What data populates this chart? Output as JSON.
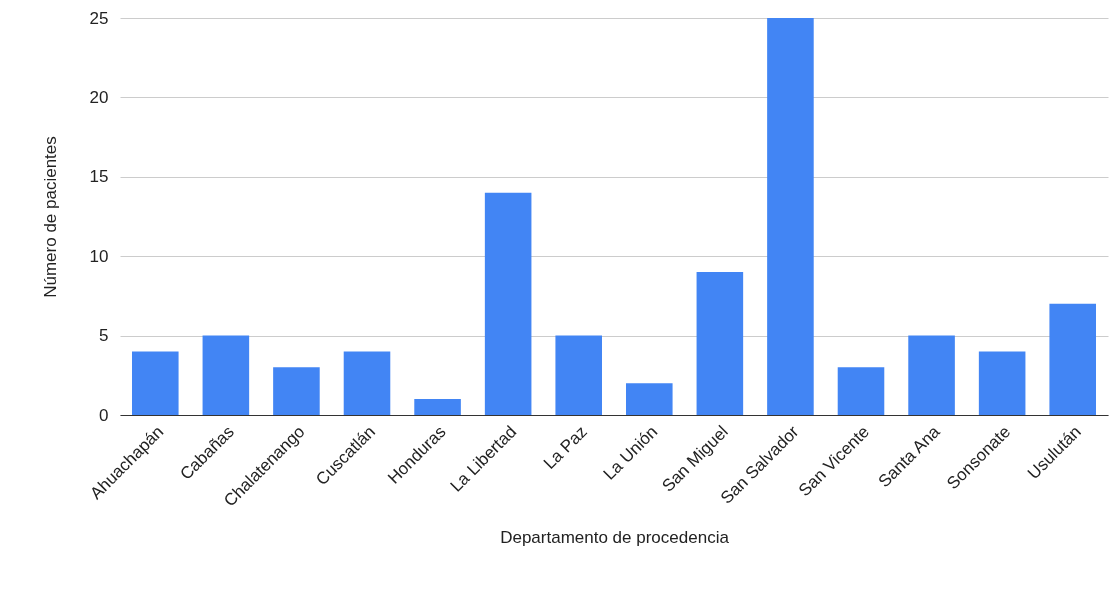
{
  "chart_data": {
    "type": "bar",
    "xlabel": "Departamento de procedencia",
    "ylabel": "Número de pacientes",
    "categories": [
      "Ahuachapán",
      "Cabañas",
      "Chalatenango",
      "Cuscatlán",
      "Honduras",
      "La Libertad",
      "La Paz",
      "La Unión",
      "San Miguel",
      "San Salvador",
      "San Vicente",
      "Santa Ana",
      "Sonsonate",
      "Usulután"
    ],
    "values": [
      4,
      5,
      3,
      4,
      1,
      14,
      5,
      2,
      9,
      25,
      3,
      5,
      4,
      7
    ],
    "color": "#4285f4",
    "ylim": [
      0,
      25
    ],
    "yticks": [
      0,
      5,
      10,
      15,
      20,
      25
    ],
    "grid": "y"
  }
}
